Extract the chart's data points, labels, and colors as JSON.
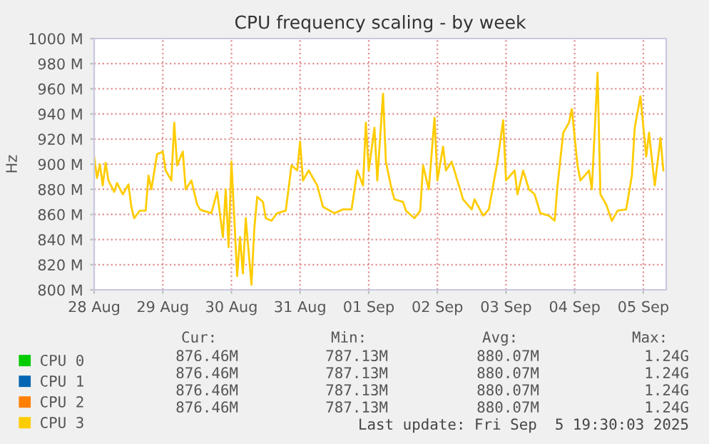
{
  "chart_data": {
    "type": "line",
    "title": "CPU frequency scaling - by week",
    "ylabel": "Hz",
    "x": [
      "2025-08-28T00:00",
      "2025-08-28T01:00",
      "2025-08-28T02:00",
      "2025-08-28T03:00",
      "2025-08-28T04:00",
      "2025-08-28T05:00",
      "2025-08-28T07:00",
      "2025-08-28T08:00",
      "2025-08-28T10:00",
      "2025-08-28T12:00",
      "2025-08-28T13:00",
      "2025-08-28T14:00",
      "2025-08-28T16:00",
      "2025-08-28T18:00",
      "2025-08-28T19:00",
      "2025-08-28T20:00",
      "2025-08-28T22:00",
      "2025-08-29T00:00",
      "2025-08-29T01:00",
      "2025-08-29T03:00",
      "2025-08-29T04:00",
      "2025-08-29T05:00",
      "2025-08-29T07:00",
      "2025-08-29T08:00",
      "2025-08-29T10:00",
      "2025-08-29T12:00",
      "2025-08-29T13:00",
      "2025-08-29T14:00",
      "2025-08-29T17:00",
      "2025-08-29T19:00",
      "2025-08-29T21:00",
      "2025-08-29T22:00",
      "2025-08-29T23:00",
      "2025-08-30T00:00",
      "2025-08-30T02:00",
      "2025-08-30T03:00",
      "2025-08-30T04:00",
      "2025-08-30T05:00",
      "2025-08-30T07:00",
      "2025-08-30T08:00",
      "2025-08-30T09:00",
      "2025-08-30T11:00",
      "2025-08-30T12:00",
      "2025-08-30T14:00",
      "2025-08-30T16:00",
      "2025-08-30T19:00",
      "2025-08-30T21:00",
      "2025-08-30T23:00",
      "2025-08-31T00:00",
      "2025-08-31T01:00",
      "2025-08-31T03:00",
      "2025-08-31T06:00",
      "2025-08-31T08:00",
      "2025-08-31T12:00",
      "2025-08-31T15:00",
      "2025-08-31T18:00",
      "2025-08-31T20:00",
      "2025-08-31T22:00",
      "2025-08-31T23:00",
      "2025-09-01T00:00",
      "2025-09-01T02:00",
      "2025-09-01T03:00",
      "2025-09-01T05:00",
      "2025-09-01T06:00",
      "2025-09-01T08:00",
      "2025-09-01T09:00",
      "2025-09-01T12:00",
      "2025-09-01T13:00",
      "2025-09-01T16:00",
      "2025-09-01T18:00",
      "2025-09-01T19:00",
      "2025-09-01T21:00",
      "2025-09-01T23:00",
      "2025-09-02T00:00",
      "2025-09-02T02:00",
      "2025-09-02T03:00",
      "2025-09-02T05:00",
      "2025-09-02T07:00",
      "2025-09-02T09:00",
      "2025-09-02T12:00",
      "2025-09-02T13:00",
      "2025-09-02T16:00",
      "2025-09-02T18:00",
      "2025-09-02T21:00",
      "2025-09-02T23:00",
      "2025-09-03T00:00",
      "2025-09-03T03:00",
      "2025-09-03T04:00",
      "2025-09-03T06:00",
      "2025-09-03T08:00",
      "2025-09-03T10:00",
      "2025-09-03T12:00",
      "2025-09-03T15:00",
      "2025-09-03T17:00",
      "2025-09-03T18:00",
      "2025-09-03T20:00",
      "2025-09-03T22:00",
      "2025-09-03T23:00",
      "2025-09-04T01:00",
      "2025-09-04T02:00",
      "2025-09-04T05:00",
      "2025-09-04T06:00",
      "2025-09-04T08:00",
      "2025-09-04T09:00",
      "2025-09-04T11:00",
      "2025-09-04T13:00",
      "2025-09-04T15:00",
      "2025-09-04T18:00",
      "2025-09-04T20:00",
      "2025-09-04T21:00",
      "2025-09-04T23:00",
      "2025-09-05T01:00",
      "2025-09-05T02:00",
      "2025-09-05T04:00",
      "2025-09-05T06:00",
      "2025-09-05T07:00"
    ],
    "series": [
      {
        "name": "CPU 0",
        "color": "#00cc00",
        "values": [
          null,
          null,
          null,
          null,
          null,
          null,
          null,
          null,
          null,
          null,
          null,
          null,
          null,
          null,
          null,
          null,
          null,
          null,
          null,
          null,
          null,
          null,
          null,
          null,
          null,
          null,
          null,
          null,
          null,
          null,
          null,
          null,
          null,
          null,
          null,
          null,
          null,
          null,
          null,
          null,
          null,
          null,
          null,
          null,
          null,
          null,
          null,
          null,
          null,
          null,
          null,
          null,
          null,
          null,
          null,
          null,
          null,
          null,
          null,
          null,
          null,
          null,
          null,
          null,
          null,
          null,
          null,
          null,
          null,
          null,
          null,
          null,
          null,
          null,
          null,
          null,
          null,
          null,
          null,
          null,
          null,
          null,
          null,
          null,
          null,
          null,
          null,
          null,
          null,
          null,
          null,
          null,
          null,
          null,
          null,
          null,
          null,
          null,
          null,
          null,
          null,
          null,
          null,
          null,
          null,
          null,
          null,
          null,
          null,
          null,
          null,
          null,
          null,
          null,
          null,
          null
        ]
      },
      {
        "name": "CPU 1",
        "color": "#0066b3",
        "values": [
          null,
          null,
          null,
          null,
          null,
          null,
          null,
          null,
          null,
          null,
          null,
          null,
          null,
          null,
          null,
          null,
          null,
          null,
          null,
          null,
          null,
          null,
          null,
          null,
          null,
          null,
          null,
          null,
          null,
          null,
          null,
          null,
          null,
          null,
          null,
          null,
          null,
          null,
          null,
          null,
          null,
          null,
          null,
          null,
          null,
          null,
          null,
          null,
          null,
          null,
          null,
          null,
          null,
          null,
          null,
          null,
          null,
          null,
          null,
          null,
          null,
          null,
          null,
          null,
          null,
          null,
          null,
          null,
          null,
          null,
          null,
          null,
          null,
          null,
          null,
          null,
          null,
          null,
          null,
          null,
          null,
          null,
          null,
          null,
          null,
          null,
          null,
          null,
          null,
          null,
          null,
          null,
          null,
          null,
          null,
          null,
          null,
          null,
          null,
          null,
          null,
          null,
          null,
          null,
          null,
          null,
          null,
          null,
          null,
          null,
          null,
          null,
          null,
          null,
          null,
          null
        ]
      },
      {
        "name": "CPU 2",
        "color": "#ff8000",
        "values": [
          null,
          null,
          null,
          null,
          null,
          null,
          null,
          null,
          null,
          null,
          null,
          null,
          null,
          null,
          null,
          null,
          null,
          null,
          null,
          null,
          null,
          null,
          null,
          null,
          null,
          null,
          null,
          null,
          null,
          null,
          null,
          null,
          null,
          null,
          null,
          null,
          null,
          null,
          null,
          null,
          null,
          null,
          null,
          null,
          null,
          null,
          null,
          null,
          null,
          null,
          null,
          null,
          null,
          null,
          null,
          null,
          null,
          null,
          null,
          null,
          null,
          null,
          null,
          null,
          null,
          null,
          null,
          null,
          null,
          null,
          null,
          null,
          null,
          null,
          null,
          null,
          null,
          null,
          null,
          null,
          null,
          null,
          null,
          null,
          null,
          null,
          null,
          null,
          null,
          null,
          null,
          null,
          null,
          null,
          null,
          null,
          null,
          null,
          null,
          null,
          null,
          null,
          null,
          null,
          null,
          null,
          null,
          null,
          null,
          null,
          null,
          null,
          null,
          null,
          null,
          null
        ]
      },
      {
        "name": "CPU 3",
        "color": "#ffcc00",
        "values": [
          906,
          889,
          900,
          883,
          901,
          887,
          878,
          885,
          876,
          884,
          866,
          857,
          863,
          863,
          891,
          880,
          908,
          910,
          895,
          887,
          933,
          899,
          910,
          880,
          887,
          868,
          864,
          863,
          861,
          878,
          842,
          880,
          834,
          902,
          811,
          842,
          813,
          857,
          804,
          849,
          874,
          870,
          857,
          855,
          861,
          863,
          899,
          895,
          918,
          887,
          895,
          883,
          866,
          861,
          864,
          864,
          895,
          883,
          933,
          895,
          929,
          887,
          956,
          902,
          880,
          872,
          870,
          863,
          857,
          863,
          899,
          880,
          937,
          887,
          914,
          895,
          902,
          887,
          872,
          864,
          872,
          859,
          864,
          902,
          935,
          887,
          895,
          876,
          895,
          880,
          876,
          861,
          859,
          855,
          883,
          925,
          933,
          944,
          899,
          887,
          895,
          880,
          973,
          876,
          868,
          855,
          863,
          864,
          891,
          929,
          954,
          906,
          925,
          883,
          921,
          895
        ]
      }
    ],
    "xlim": [
      "2025-08-28T00:00",
      "2025-09-05T08:00"
    ],
    "xticks": [
      {
        "value": "2025-08-28",
        "label": "28 Aug"
      },
      {
        "value": "2025-08-29",
        "label": "29 Aug"
      },
      {
        "value": "2025-08-30",
        "label": "30 Aug"
      },
      {
        "value": "2025-08-31",
        "label": "31 Aug"
      },
      {
        "value": "2025-09-01",
        "label": "01 Sep"
      },
      {
        "value": "2025-09-02",
        "label": "02 Sep"
      },
      {
        "value": "2025-09-03",
        "label": "03 Sep"
      },
      {
        "value": "2025-09-04",
        "label": "04 Sep"
      },
      {
        "value": "2025-09-05",
        "label": "05 Sep"
      }
    ],
    "ylim": [
      800,
      1000
    ],
    "yticks": [
      {
        "value": 800,
        "label": "800 M"
      },
      {
        "value": 820,
        "label": "820 M"
      },
      {
        "value": 840,
        "label": "840 M"
      },
      {
        "value": 860,
        "label": "860 M"
      },
      {
        "value": 880,
        "label": "880 M"
      },
      {
        "value": 900,
        "label": "900 M"
      },
      {
        "value": 920,
        "label": "920 M"
      },
      {
        "value": 940,
        "label": "940 M"
      },
      {
        "value": 960,
        "label": "960 M"
      },
      {
        "value": 980,
        "label": "980 M"
      },
      {
        "value": 1000,
        "label": "1000 M"
      }
    ],
    "grid": true,
    "legend": "bottom",
    "annotations": [
      "Cur:",
      "Min:",
      "Avg:",
      "Max:",
      "876.46M",
      "787.13M",
      "880.07M",
      "1.24G",
      "876.46M",
      "787.13M",
      "880.07M",
      "1.24G",
      "876.46M",
      "787.13M",
      "880.07M",
      "1.24G",
      "876.46M",
      "787.13M",
      "880.07M",
      "1.24G",
      "Last update: Fri Sep  5 19:30:03 2025"
    ]
  }
}
